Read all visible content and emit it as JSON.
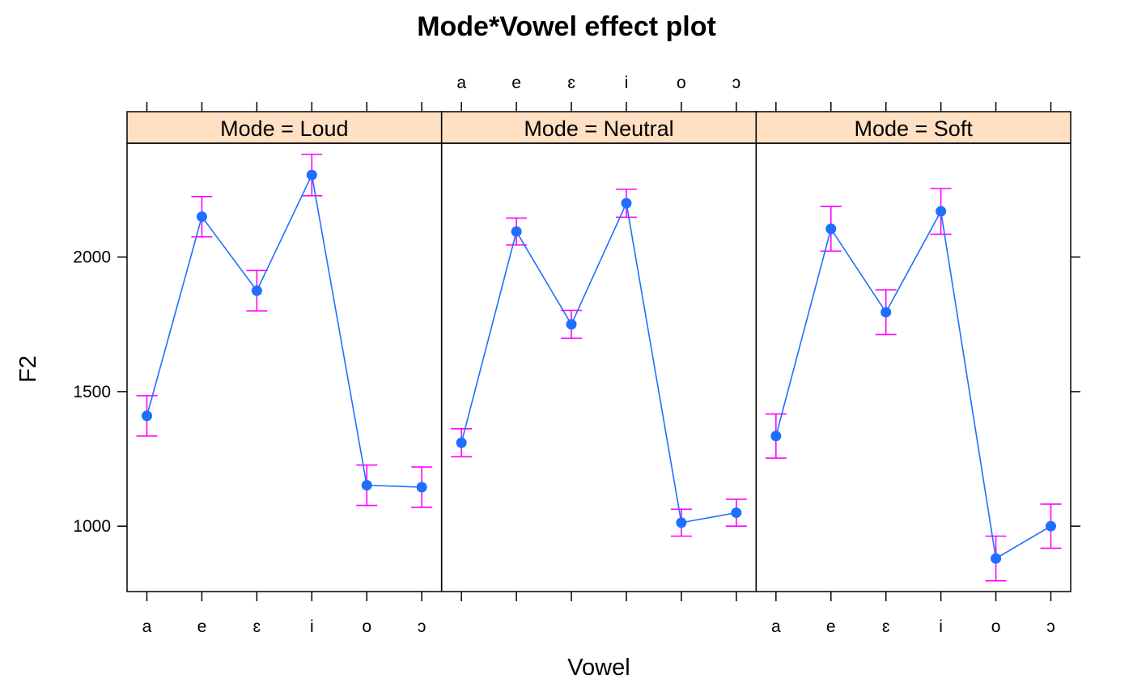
{
  "chart_data": {
    "type": "line",
    "title": "Mode*Vowel effect plot",
    "xlabel": "Vowel",
    "ylabel": "F2",
    "categories": [
      "a",
      "e",
      "ɛ",
      "i",
      "o",
      "ɔ"
    ],
    "y_ticks": [
      1000,
      1500,
      2000
    ],
    "ylim": [
      757,
      2423
    ],
    "grid": false,
    "legend": "none",
    "error_bars": true,
    "colors": {
      "line": "#1f6fff",
      "point": "#1f6fff",
      "error_bar": "#ff00ff",
      "strip_fill": "#ffe0c2",
      "frame": "#000000"
    },
    "panels": [
      {
        "label": "Mode = Loud",
        "values": [
          1410,
          2150,
          1875,
          2305,
          1152,
          1145
        ],
        "lower": [
          1335,
          2075,
          1800,
          2228,
          1077,
          1070
        ],
        "upper": [
          1485,
          2225,
          1950,
          2382,
          1227,
          1220
        ]
      },
      {
        "label": "Mode = Neutral",
        "values": [
          1310,
          2095,
          1750,
          2200,
          1013,
          1050
        ],
        "lower": [
          1258,
          2045,
          1698,
          2148,
          963,
          1000
        ],
        "upper": [
          1362,
          2145,
          1802,
          2252,
          1063,
          1100
        ]
      },
      {
        "label": "Mode = Soft",
        "values": [
          1335,
          2105,
          1795,
          2170,
          880,
          1000
        ],
        "lower": [
          1253,
          2022,
          1712,
          2085,
          797,
          918
        ],
        "upper": [
          1417,
          2188,
          1878,
          2255,
          963,
          1082
        ]
      }
    ]
  }
}
